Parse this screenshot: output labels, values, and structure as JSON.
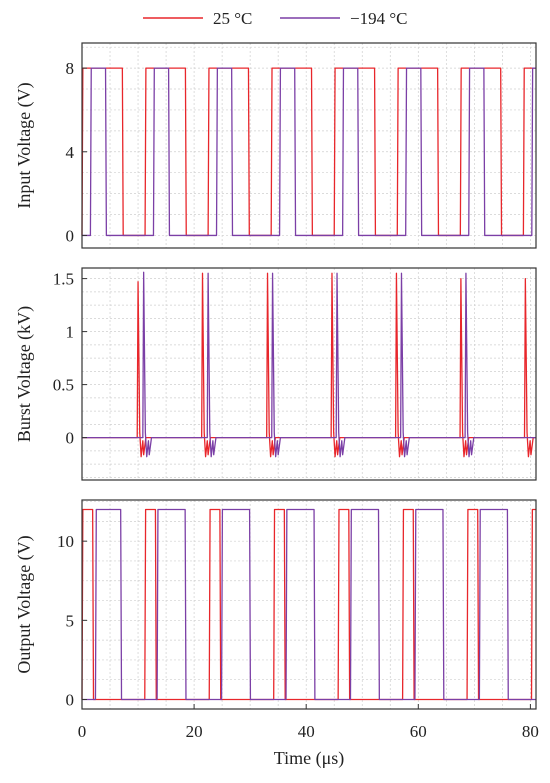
{
  "chart_data": [
    {
      "type": "line",
      "ylabel": "Input Voltage (V)",
      "ylim": [
        -0.6,
        9.2
      ],
      "yticks": [
        {
          "v": 0,
          "label": "0"
        },
        {
          "v": 4,
          "label": "4"
        },
        {
          "v": 8,
          "label": "8"
        }
      ],
      "xlim": [
        0,
        81
      ],
      "waveform": "square",
      "period_us": 11.25,
      "series": [
        {
          "name": "25 °C",
          "low": 0,
          "high": 8,
          "rise_us": [
            0.0,
            11.25,
            22.5,
            33.75,
            45.0,
            56.25,
            67.5,
            78.75
          ],
          "fall_us": [
            7.2,
            18.45,
            29.7,
            40.95,
            52.2,
            63.45,
            74.7
          ]
        },
        {
          "name": "−194 °C",
          "low": 0,
          "high": 8,
          "rise_us": [
            1.5,
            12.75,
            24.0,
            35.25,
            46.5,
            57.75,
            69.0,
            80.25
          ],
          "fall_us": [
            4.2,
            15.45,
            26.7,
            37.95,
            49.2,
            60.45,
            71.7
          ]
        }
      ]
    },
    {
      "type": "line",
      "ylabel": "Burst Voltage (kV)",
      "ylim": [
        -0.4,
        1.6
      ],
      "yticks": [
        {
          "v": 0,
          "label": "0"
        },
        {
          "v": 0.5,
          "label": "0.5"
        },
        {
          "v": 1,
          "label": "1"
        },
        {
          "v": 1.5,
          "label": "1.5"
        }
      ],
      "xlim": [
        0,
        81
      ],
      "waveform": "spikes",
      "series": [
        {
          "name": "25 °C",
          "baseline": 0,
          "spike_times_us": [
            10.0,
            21.5,
            33.1,
            44.6,
            56.1,
            67.6,
            79.1
          ],
          "peaks_kV": [
            1.47,
            1.55,
            1.55,
            1.55,
            1.55,
            1.5,
            1.5
          ],
          "undershoot_kV": -0.18
        },
        {
          "name": "−194 °C",
          "baseline": 0,
          "spike_times_us": [
            11.0,
            22.5,
            34.0,
            45.5,
            57.0,
            68.5
          ],
          "peaks_kV": [
            1.56,
            1.55,
            1.55,
            1.55,
            1.55,
            1.55
          ],
          "undershoot_kV": -0.18
        }
      ]
    },
    {
      "type": "line",
      "ylabel": "Output Voltage (V)",
      "xlabel": "Time (μs)",
      "ylim": [
        -0.6,
        12.6
      ],
      "yticks": [
        {
          "v": 0,
          "label": "0"
        },
        {
          "v": 5,
          "label": "5"
        },
        {
          "v": 10,
          "label": "10"
        }
      ],
      "xticks": [
        {
          "v": 0,
          "label": "0"
        },
        {
          "v": 20,
          "label": "20"
        },
        {
          "v": 40,
          "label": "40"
        },
        {
          "v": 60,
          "label": "60"
        },
        {
          "v": 80,
          "label": "80"
        }
      ],
      "xlim": [
        0,
        81
      ],
      "waveform": "square",
      "series": [
        {
          "name": "25 °C",
          "low": 0,
          "high": 12,
          "rise_us": [
            0.0,
            11.2,
            22.7,
            34.2,
            45.7,
            57.2,
            68.7,
            80.2
          ],
          "fall_us": [
            1.9,
            13.1,
            24.6,
            36.1,
            47.6,
            59.1,
            70.6
          ]
        },
        {
          "name": "−194 °C",
          "low": 0,
          "high": 12,
          "rise_us": [
            2.4,
            13.4,
            24.9,
            36.4,
            47.9,
            59.4,
            70.9
          ],
          "fall_us": [
            6.9,
            18.4,
            29.9,
            41.4,
            52.9,
            64.4,
            75.9
          ]
        }
      ]
    }
  ],
  "legend": [
    {
      "label": "25 °C",
      "color": "#e8262b"
    },
    {
      "label": "−194 °C",
      "color": "#7b3fa6"
    }
  ],
  "colors": {
    "red": "#e8262b",
    "purple": "#7b3fa6",
    "grid": "#cfcfcf",
    "axis": "#333333"
  }
}
